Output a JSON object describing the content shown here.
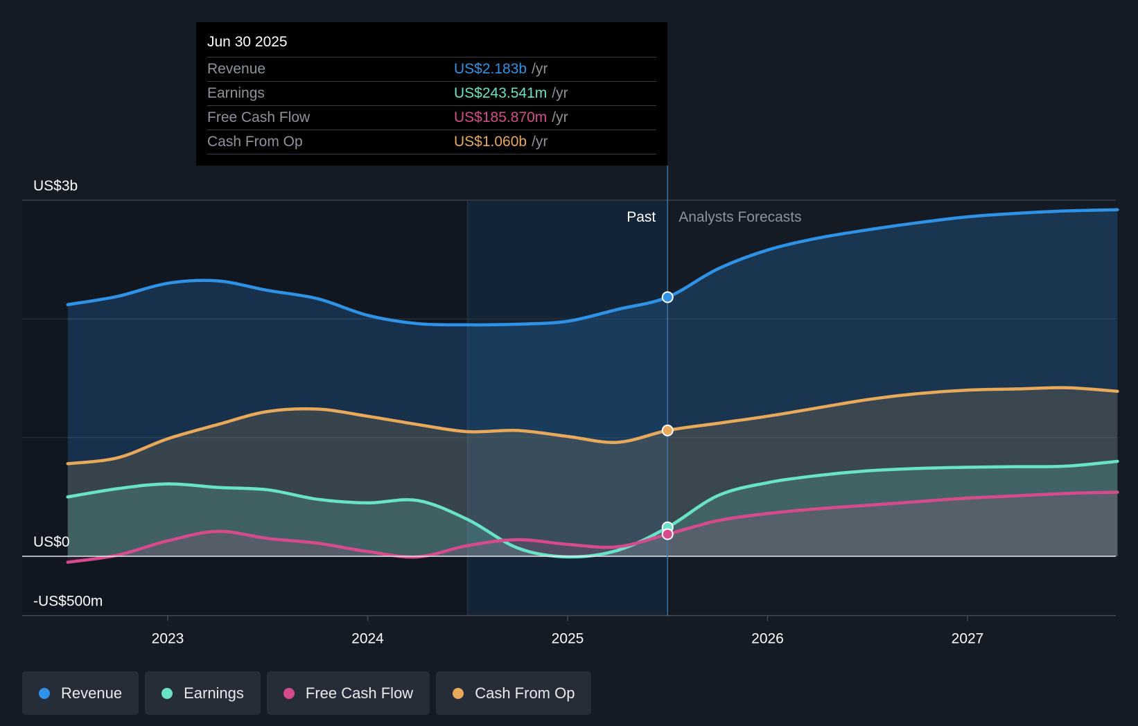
{
  "tooltip": {
    "date": "Jun 30 2025",
    "rows": [
      {
        "label": "Revenue",
        "value": "US$2.183b",
        "unit": "/yr",
        "color": "#2e93e6"
      },
      {
        "label": "Earnings",
        "value": "US$243.541m",
        "unit": "/yr",
        "color": "#68e3c8"
      },
      {
        "label": "Free Cash Flow",
        "value": "US$185.870m",
        "unit": "/yr",
        "color": "#d64b8c"
      },
      {
        "label": "Cash From Op",
        "value": "US$1.060b",
        "unit": "/yr",
        "color": "#e8a95a"
      }
    ]
  },
  "legend": [
    {
      "label": "Revenue",
      "color": "#2e93e6"
    },
    {
      "label": "Earnings",
      "color": "#68e3c8"
    },
    {
      "label": "Free Cash Flow",
      "color": "#d64b8c"
    },
    {
      "label": "Cash From Op",
      "color": "#e8a95a"
    }
  ],
  "chart_data": {
    "type": "area",
    "title": "",
    "xlabel": "",
    "ylabel": "",
    "y_tick_labels": [
      "US$3b",
      "US$0",
      "-US$500m"
    ],
    "y_ticks": [
      3000,
      0,
      -500
    ],
    "ylim": [
      -500,
      3000
    ],
    "xlim": [
      2022.5,
      2027.75
    ],
    "x_ticks": [
      2023,
      2024,
      2025,
      2026,
      2027
    ],
    "x_tick_labels": [
      "2023",
      "2024",
      "2025",
      "2026",
      "2027"
    ],
    "grid": true,
    "past_label": "Past",
    "forecast_label": "Analysts Forecasts",
    "past_end": 2025.5,
    "highlight_start": 2024.5,
    "units": "US$ millions",
    "series": [
      {
        "name": "Revenue",
        "color": "#2e93e6",
        "points": [
          [
            2022.5,
            2120
          ],
          [
            2022.75,
            2190
          ],
          [
            2023.0,
            2300
          ],
          [
            2023.25,
            2320
          ],
          [
            2023.5,
            2240
          ],
          [
            2023.75,
            2170
          ],
          [
            2024.0,
            2030
          ],
          [
            2024.25,
            1960
          ],
          [
            2024.5,
            1950
          ],
          [
            2024.75,
            1955
          ],
          [
            2025.0,
            1980
          ],
          [
            2025.25,
            2080
          ],
          [
            2025.5,
            2183
          ],
          [
            2025.75,
            2420
          ],
          [
            2026.0,
            2580
          ],
          [
            2026.25,
            2680
          ],
          [
            2026.5,
            2750
          ],
          [
            2026.75,
            2810
          ],
          [
            2027.0,
            2860
          ],
          [
            2027.25,
            2890
          ],
          [
            2027.5,
            2910
          ],
          [
            2027.75,
            2920
          ]
        ]
      },
      {
        "name": "Cash From Op",
        "color": "#e8a95a",
        "points": [
          [
            2022.5,
            780
          ],
          [
            2022.75,
            830
          ],
          [
            2023.0,
            990
          ],
          [
            2023.25,
            1110
          ],
          [
            2023.5,
            1220
          ],
          [
            2023.75,
            1240
          ],
          [
            2024.0,
            1180
          ],
          [
            2024.25,
            1110
          ],
          [
            2024.5,
            1050
          ],
          [
            2024.75,
            1060
          ],
          [
            2025.0,
            1010
          ],
          [
            2025.25,
            960
          ],
          [
            2025.5,
            1060
          ],
          [
            2025.75,
            1120
          ],
          [
            2026.0,
            1180
          ],
          [
            2026.25,
            1250
          ],
          [
            2026.5,
            1320
          ],
          [
            2026.75,
            1370
          ],
          [
            2027.0,
            1400
          ],
          [
            2027.25,
            1410
          ],
          [
            2027.5,
            1420
          ],
          [
            2027.75,
            1390
          ]
        ]
      },
      {
        "name": "Earnings",
        "color": "#68e3c8",
        "points": [
          [
            2022.5,
            500
          ],
          [
            2022.75,
            570
          ],
          [
            2023.0,
            610
          ],
          [
            2023.25,
            580
          ],
          [
            2023.5,
            560
          ],
          [
            2023.75,
            480
          ],
          [
            2024.0,
            450
          ],
          [
            2024.25,
            470
          ],
          [
            2024.5,
            310
          ],
          [
            2024.75,
            70
          ],
          [
            2025.0,
            -5
          ],
          [
            2025.25,
            50
          ],
          [
            2025.5,
            243.541
          ],
          [
            2025.75,
            510
          ],
          [
            2026.0,
            620
          ],
          [
            2026.25,
            680
          ],
          [
            2026.5,
            720
          ],
          [
            2026.75,
            740
          ],
          [
            2027.0,
            750
          ],
          [
            2027.25,
            755
          ],
          [
            2027.5,
            760
          ],
          [
            2027.75,
            800
          ]
        ]
      },
      {
        "name": "Free Cash Flow",
        "color": "#d64b8c",
        "points": [
          [
            2022.5,
            -50
          ],
          [
            2022.75,
            10
          ],
          [
            2023.0,
            130
          ],
          [
            2023.25,
            210
          ],
          [
            2023.5,
            150
          ],
          [
            2023.75,
            110
          ],
          [
            2024.0,
            40
          ],
          [
            2024.25,
            -5
          ],
          [
            2024.5,
            90
          ],
          [
            2024.75,
            140
          ],
          [
            2025.0,
            100
          ],
          [
            2025.25,
            80
          ],
          [
            2025.5,
            185.87
          ],
          [
            2025.75,
            300
          ],
          [
            2026.0,
            360
          ],
          [
            2026.25,
            400
          ],
          [
            2026.5,
            430
          ],
          [
            2026.75,
            460
          ],
          [
            2027.0,
            490
          ],
          [
            2027.25,
            510
          ],
          [
            2027.5,
            530
          ],
          [
            2027.75,
            540
          ]
        ]
      }
    ]
  }
}
